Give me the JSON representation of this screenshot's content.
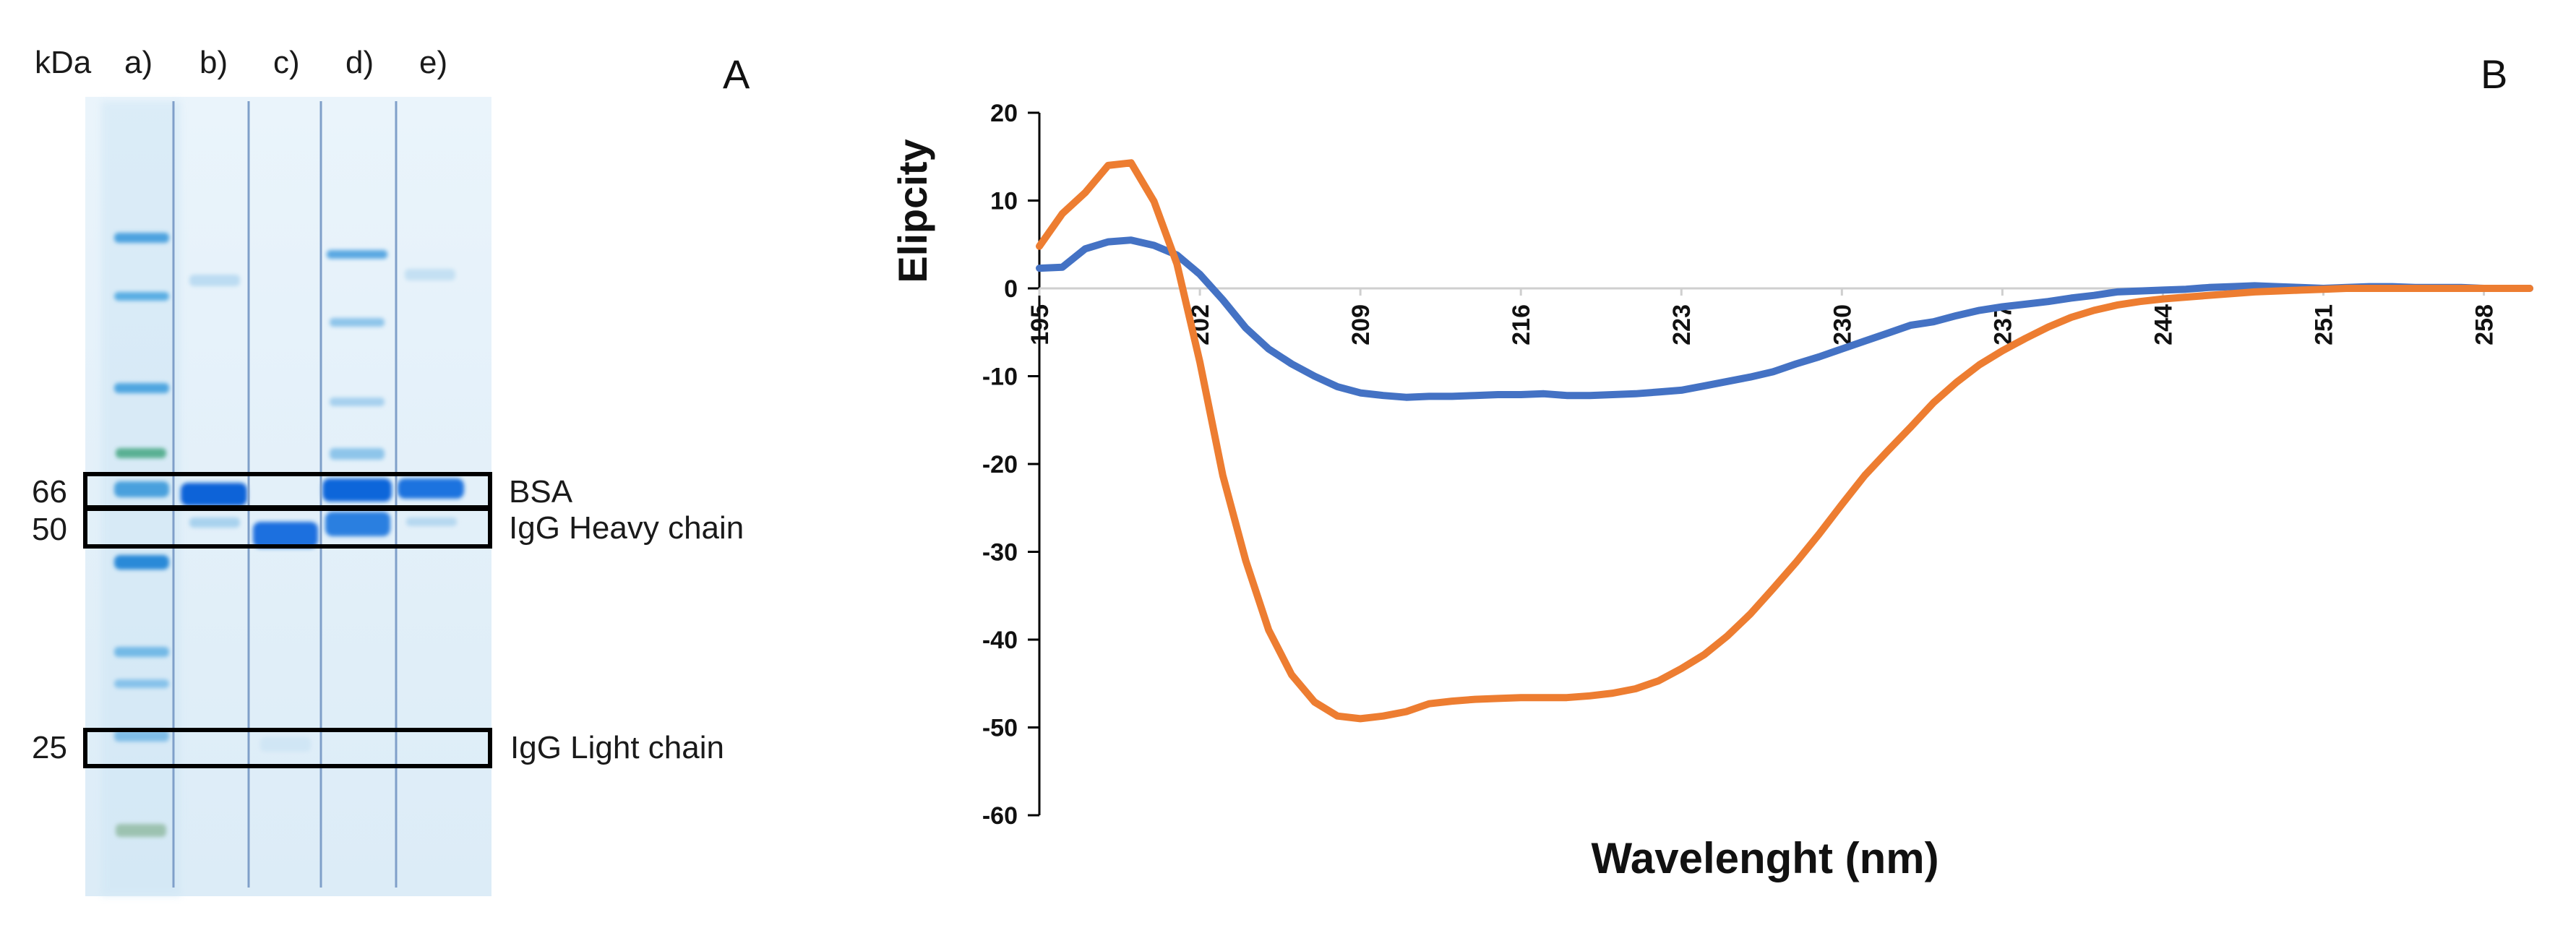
{
  "panel_a": {
    "letter": "A",
    "header": {
      "unit": "kDa",
      "lanes": [
        "a)",
        "b)",
        "c)",
        "d)",
        "e)"
      ]
    },
    "markers": [
      {
        "kda": "66",
        "annotation": "BSA"
      },
      {
        "kda": "50",
        "annotation": "IgG Heavy chain"
      },
      {
        "kda": "25",
        "annotation": "IgG Light chain"
      }
    ]
  },
  "panel_b": {
    "letter": "B",
    "chart_data": {
      "type": "line",
      "title": "",
      "xlabel": "Wavelenght (nm)",
      "ylabel": "Elipcity",
      "xlim": [
        195,
        260
      ],
      "ylim": [
        -60,
        20
      ],
      "x_ticks": [
        "195",
        "202",
        "209",
        "216",
        "223",
        "230",
        "237",
        "244",
        "251",
        "258"
      ],
      "y_ticks": [
        "20",
        "10",
        "0",
        "-10",
        "-20",
        "-30",
        "-40",
        "-50",
        "-60"
      ],
      "grid": false,
      "legend": "none",
      "series": [
        {
          "name": "blue",
          "color": "#4472C4",
          "x": [
            195,
            196,
            197,
            198,
            199,
            200,
            201,
            202,
            203,
            204,
            205,
            206,
            207,
            208,
            209,
            210,
            211,
            212,
            213,
            214,
            215,
            216,
            217,
            218,
            219,
            220,
            221,
            222,
            223,
            224,
            225,
            226,
            227,
            228,
            229,
            230,
            231,
            232,
            233,
            234,
            235,
            236,
            237,
            238,
            239,
            240,
            241,
            242,
            243,
            244,
            245,
            246,
            247,
            248,
            249,
            250,
            251,
            252,
            253,
            254,
            255,
            256,
            257,
            258,
            259,
            260
          ],
          "values": [
            2.3,
            2.4,
            4.5,
            5.3,
            5.5,
            4.9,
            3.8,
            1.6,
            -1.3,
            -4.5,
            -6.9,
            -8.6,
            -10.0,
            -11.2,
            -11.9,
            -12.2,
            -12.4,
            -12.3,
            -12.3,
            -12.2,
            -12.1,
            -12.1,
            -12.0,
            -12.2,
            -12.2,
            -12.1,
            -12.0,
            -11.8,
            -11.6,
            -11.1,
            -10.6,
            -10.1,
            -9.5,
            -8.6,
            -7.8,
            -6.9,
            -6.0,
            -5.1,
            -4.2,
            -3.8,
            -3.1,
            -2.5,
            -2.1,
            -1.8,
            -1.5,
            -1.1,
            -0.8,
            -0.4,
            -0.3,
            -0.2,
            -0.1,
            0.1,
            0.2,
            0.3,
            0.2,
            0.1,
            0.0,
            0.1,
            0.2,
            0.2,
            0.1,
            0.1,
            0.1,
            0.0,
            0.0,
            0.0
          ]
        },
        {
          "name": "orange",
          "color": "#ED7D31",
          "x": [
            195,
            196,
            197,
            198,
            199,
            200,
            201,
            202,
            203,
            204,
            205,
            206,
            207,
            208,
            209,
            210,
            211,
            212,
            213,
            214,
            215,
            216,
            217,
            218,
            219,
            220,
            221,
            222,
            223,
            224,
            225,
            226,
            227,
            228,
            229,
            230,
            231,
            232,
            233,
            234,
            235,
            236,
            237,
            238,
            239,
            240,
            241,
            242,
            243,
            244,
            245,
            246,
            247,
            248,
            249,
            250,
            251,
            252,
            253,
            254,
            255,
            256,
            257,
            258,
            259,
            260
          ],
          "values": [
            4.8,
            8.5,
            10.9,
            14.0,
            14.3,
            9.9,
            2.8,
            -8.4,
            -21.3,
            -31.0,
            -38.9,
            -44.0,
            -47.1,
            -48.7,
            -49.0,
            -48.7,
            -48.2,
            -47.3,
            -47.0,
            -46.8,
            -46.7,
            -46.6,
            -46.6,
            -46.6,
            -46.4,
            -46.1,
            -45.6,
            -44.7,
            -43.3,
            -41.7,
            -39.6,
            -37.1,
            -34.2,
            -31.2,
            -28.0,
            -24.6,
            -21.3,
            -18.5,
            -15.8,
            -13.0,
            -10.7,
            -8.7,
            -7.1,
            -5.7,
            -4.4,
            -3.3,
            -2.5,
            -1.9,
            -1.5,
            -1.2,
            -1.0,
            -0.8,
            -0.6,
            -0.4,
            -0.3,
            -0.2,
            -0.1,
            0.0,
            0.0,
            0.0,
            0.0,
            0.0,
            0.0,
            0.0,
            0.0,
            0.0
          ]
        }
      ]
    }
  }
}
